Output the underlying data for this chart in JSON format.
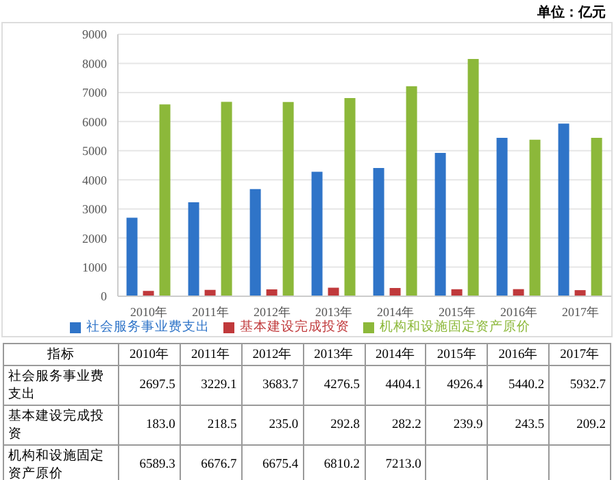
{
  "chart_data": {
    "type": "bar",
    "categories": [
      "2010年",
      "2011年",
      "2012年",
      "2013年",
      "2014年",
      "2015年",
      "2016年",
      "2017年"
    ],
    "series": [
      {
        "name": "社会服务事业费支出",
        "color": "#2f74c8",
        "values": [
          2697.5,
          3229.1,
          3683.7,
          4276.5,
          4404.1,
          4926.4,
          5440.2,
          5932.7
        ],
        "value_labels": [
          "2697.5",
          "3229.1",
          "3683.7",
          "4276.5",
          "4404.1",
          "4926.4",
          "5440.2",
          "5932.7"
        ]
      },
      {
        "name": "基本建设完成投资",
        "color": "#c0393b",
        "values": [
          183.0,
          218.5,
          235.0,
          292.8,
          282.2,
          239.9,
          243.5,
          209.2
        ],
        "value_labels": [
          "183.0",
          "218.5",
          "235.0",
          "292.8",
          "282.2",
          "239.9",
          "243.5",
          "209.2"
        ]
      },
      {
        "name": "机构和设施固定资产原价",
        "color": "#8cb83a",
        "values": [
          6589.3,
          6676.7,
          6675.4,
          6810.2,
          7213.0,
          8150,
          5380,
          5440
        ],
        "value_labels": [
          "6589.3",
          "6676.7",
          "6675.4",
          "6810.2",
          "7213.0",
          null,
          null,
          null
        ]
      }
    ],
    "ylim": [
      0,
      9000
    ],
    "yticks": [
      0,
      1000,
      2000,
      3000,
      4000,
      5000,
      6000,
      7000,
      8000,
      9000
    ],
    "grid": "y",
    "legend": "bottom",
    "annotations": [
      "单位：亿元",
      "指标"
    ]
  }
}
